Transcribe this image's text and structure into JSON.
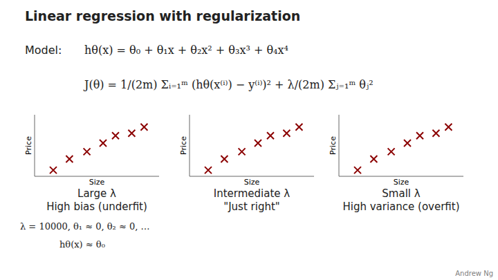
{
  "chart_data": [
    {
      "type": "scatter",
      "title": "Linear regression with regularization",
      "annotations": [
        "Model:",
        "hθ(x) = θ₀ + θ₁x + θ₂x² + θ₃x³ + θ₄x⁴",
        "J(θ) = 1/(2m) Σᵢ₌₁ᵐ (hθ(x⁽ⁱ⁾) − y⁽ⁱ⁾)² + λ/(2m) Σⱼ₌₁ᵐ θⱼ²",
        "λ = 10000, θ₁ ≈ 0, θ₂ ≈ 0, …",
        "hθ(x) ≈ θ₀",
        "Andrew Ng"
      ],
      "subtitle": "Large λ",
      "caption": "High bias (underfit)",
      "xlabel": "Size",
      "ylabel": "Price",
      "x": [
        0.15,
        0.28,
        0.42,
        0.55,
        0.65,
        0.78,
        0.88
      ],
      "values": [
        0.1,
        0.28,
        0.4,
        0.54,
        0.66,
        0.7,
        0.8
      ],
      "color": "#8b0000",
      "marker": "x",
      "xlim": [
        0,
        1
      ],
      "ylim": [
        0,
        1
      ],
      "tick_labels": false
    },
    {
      "type": "scatter",
      "subtitle": "Intermediate λ",
      "caption": "\"Just right\"",
      "xlabel": "Size",
      "ylabel": "Price",
      "x": [
        0.15,
        0.28,
        0.42,
        0.55,
        0.65,
        0.78,
        0.88
      ],
      "values": [
        0.1,
        0.28,
        0.4,
        0.54,
        0.66,
        0.7,
        0.8
      ],
      "color": "#8b0000",
      "marker": "x",
      "xlim": [
        0,
        1
      ],
      "ylim": [
        0,
        1
      ],
      "tick_labels": false
    },
    {
      "type": "scatter",
      "subtitle": "Small λ",
      "caption": "High variance (overfit)",
      "xlabel": "Size",
      "ylabel": "Price",
      "x": [
        0.15,
        0.28,
        0.42,
        0.55,
        0.65,
        0.78,
        0.88
      ],
      "values": [
        0.1,
        0.28,
        0.4,
        0.54,
        0.66,
        0.7,
        0.8
      ],
      "color": "#8b0000",
      "marker": "x",
      "xlim": [
        0,
        1
      ],
      "ylim": [
        0,
        1
      ],
      "tick_labels": false
    }
  ]
}
